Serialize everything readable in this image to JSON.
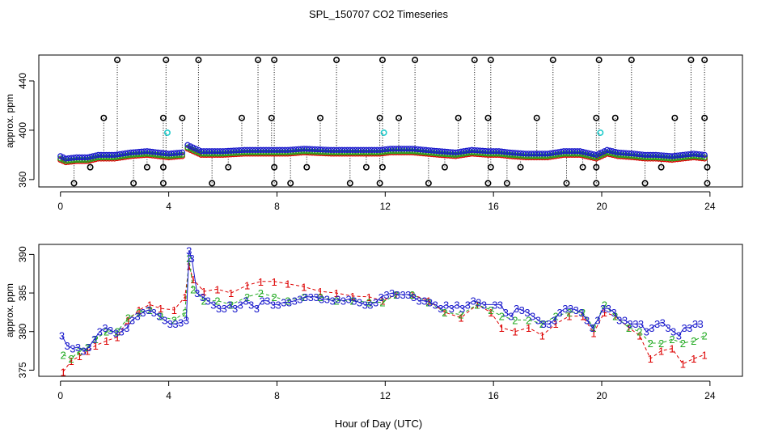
{
  "figure": {
    "title": "SPL_150707  CO2 Timeseries",
    "xlabel": "Hour of Day (UTC)"
  },
  "colors": {
    "series_1": "#dd0000",
    "series_2": "#22aa22",
    "series_3": "#1a1acc",
    "flag": "#000000",
    "cyan": "#22cccc"
  },
  "chart_data": [
    {
      "type": "scatter",
      "name": "top-panel",
      "ylabel": "approx. ppm",
      "xlim": [
        -0.8,
        25.2
      ],
      "ylim": [
        354,
        461
      ],
      "xticks": [
        0,
        4,
        8,
        12,
        16,
        20,
        24
      ],
      "yticks": [
        360,
        400,
        440
      ],
      "series": [
        {
          "name": "1",
          "marker": "o",
          "color": "#dd0000",
          "offset": -3
        },
        {
          "name": "2",
          "marker": "o",
          "color": "#22aa22",
          "offset": -2
        },
        {
          "name": "3",
          "marker": "o",
          "color": "#1a1acc",
          "offset": 0
        }
      ],
      "baseline_profile": [
        [
          0.0,
          379
        ],
        [
          0.2,
          377
        ],
        [
          0.6,
          378
        ],
        [
          1.0,
          378
        ],
        [
          1.4,
          380
        ],
        [
          2.0,
          380
        ],
        [
          2.6,
          382
        ],
        [
          3.2,
          383
        ],
        [
          3.6,
          382
        ],
        [
          4.0,
          381
        ],
        [
          4.5,
          382
        ],
        [
          4.7,
          388
        ],
        [
          4.9,
          386
        ],
        [
          5.2,
          383
        ],
        [
          6.0,
          383
        ],
        [
          6.8,
          384
        ],
        [
          7.4,
          384
        ],
        [
          7.9,
          384
        ],
        [
          8.4,
          384
        ],
        [
          9.0,
          385
        ],
        [
          10.0,
          384
        ],
        [
          11.0,
          384
        ],
        [
          11.8,
          384
        ],
        [
          12.2,
          385
        ],
        [
          13.0,
          385
        ],
        [
          14.0,
          383
        ],
        [
          14.6,
          382
        ],
        [
          15.2,
          384
        ],
        [
          15.8,
          383
        ],
        [
          16.2,
          383
        ],
        [
          16.6,
          382
        ],
        [
          17.2,
          381
        ],
        [
          18.0,
          381
        ],
        [
          18.6,
          383
        ],
        [
          19.2,
          383
        ],
        [
          19.8,
          380
        ],
        [
          20.2,
          384
        ],
        [
          20.6,
          382
        ],
        [
          21.2,
          381
        ],
        [
          21.6,
          380
        ],
        [
          22.0,
          380
        ],
        [
          22.6,
          379
        ],
        [
          23.0,
          380
        ],
        [
          23.4,
          381
        ],
        [
          23.8,
          380
        ]
      ],
      "flag_points": [
        {
          "x": 0.5,
          "y": 357
        },
        {
          "x": 1.1,
          "y": 370
        },
        {
          "x": 1.6,
          "y": 410
        },
        {
          "x": 2.1,
          "y": 457
        },
        {
          "x": 2.7,
          "y": 357
        },
        {
          "x": 3.2,
          "y": 370
        },
        {
          "x": 3.8,
          "y": 410
        },
        {
          "x": 3.9,
          "y": 457
        },
        {
          "x": 3.8,
          "y": 370
        },
        {
          "x": 3.8,
          "y": 357
        },
        {
          "x": 4.5,
          "y": 410
        },
        {
          "x": 5.1,
          "y": 457
        },
        {
          "x": 5.6,
          "y": 357
        },
        {
          "x": 6.2,
          "y": 370
        },
        {
          "x": 6.7,
          "y": 410
        },
        {
          "x": 7.3,
          "y": 457
        },
        {
          "x": 7.8,
          "y": 410
        },
        {
          "x": 7.9,
          "y": 457
        },
        {
          "x": 7.9,
          "y": 370
        },
        {
          "x": 7.9,
          "y": 357
        },
        {
          "x": 8.5,
          "y": 357
        },
        {
          "x": 9.1,
          "y": 370
        },
        {
          "x": 9.6,
          "y": 410
        },
        {
          "x": 10.2,
          "y": 457
        },
        {
          "x": 10.7,
          "y": 357
        },
        {
          "x": 11.3,
          "y": 370
        },
        {
          "x": 11.8,
          "y": 410
        },
        {
          "x": 11.9,
          "y": 457
        },
        {
          "x": 11.9,
          "y": 370
        },
        {
          "x": 11.8,
          "y": 357
        },
        {
          "x": 12.5,
          "y": 410
        },
        {
          "x": 13.1,
          "y": 457
        },
        {
          "x": 13.6,
          "y": 357
        },
        {
          "x": 14.2,
          "y": 370
        },
        {
          "x": 14.7,
          "y": 410
        },
        {
          "x": 15.3,
          "y": 457
        },
        {
          "x": 15.8,
          "y": 410
        },
        {
          "x": 15.9,
          "y": 457
        },
        {
          "x": 15.9,
          "y": 370
        },
        {
          "x": 15.8,
          "y": 357
        },
        {
          "x": 16.5,
          "y": 357
        },
        {
          "x": 17.0,
          "y": 370
        },
        {
          "x": 17.6,
          "y": 410
        },
        {
          "x": 18.2,
          "y": 457
        },
        {
          "x": 18.7,
          "y": 357
        },
        {
          "x": 19.3,
          "y": 370
        },
        {
          "x": 19.8,
          "y": 410
        },
        {
          "x": 19.9,
          "y": 457
        },
        {
          "x": 19.8,
          "y": 370
        },
        {
          "x": 19.8,
          "y": 357
        },
        {
          "x": 20.5,
          "y": 410
        },
        {
          "x": 21.1,
          "y": 457
        },
        {
          "x": 21.6,
          "y": 357
        },
        {
          "x": 22.2,
          "y": 370
        },
        {
          "x": 22.7,
          "y": 410
        },
        {
          "x": 23.3,
          "y": 457
        },
        {
          "x": 23.8,
          "y": 457
        },
        {
          "x": 23.8,
          "y": 410
        },
        {
          "x": 23.9,
          "y": 370
        },
        {
          "x": 23.9,
          "y": 357
        }
      ],
      "cyan_points": [
        {
          "x": 3.95,
          "y": 398
        },
        {
          "x": 11.95,
          "y": 398
        },
        {
          "x": 19.95,
          "y": 398
        }
      ]
    },
    {
      "type": "scatter",
      "name": "bottom-panel",
      "ylabel": "approx. ppm",
      "xlim": [
        -0.8,
        25.2
      ],
      "ylim": [
        374.2,
        391.3
      ],
      "xticks": [
        0,
        4,
        8,
        12,
        16,
        20,
        24
      ],
      "yticks": [
        375,
        380,
        385,
        390
      ],
      "series": [
        {
          "name": "1",
          "marker": "1",
          "color": "#dd0000",
          "x": [
            0.1,
            0.4,
            0.7,
            1.0,
            1.3,
            1.7,
            2.1,
            2.5,
            2.9,
            3.3,
            3.7,
            4.2,
            4.6,
            4.75,
            4.9,
            5.3,
            5.8,
            6.3,
            6.9,
            7.4,
            7.9,
            8.4,
            9.0,
            9.6,
            10.2,
            10.8,
            11.4,
            11.9,
            12.4,
            13.0,
            13.6,
            14.2,
            14.8,
            15.4,
            15.9,
            16.3,
            16.8,
            17.3,
            17.8,
            18.3,
            18.8,
            19.3,
            19.7,
            20.1,
            20.5,
            21.0,
            21.4,
            21.8,
            22.2,
            22.6,
            23.0,
            23.4,
            23.8
          ],
          "y": [
            374.8,
            376.2,
            376.8,
            377.5,
            378.2,
            378.8,
            379.3,
            381.5,
            382.8,
            383.5,
            383.0,
            382.8,
            384.5,
            388.5,
            386.8,
            385.2,
            385.5,
            385.0,
            386.0,
            386.5,
            386.5,
            386.2,
            385.8,
            385.2,
            385.0,
            384.6,
            384.5,
            384.0,
            384.8,
            384.8,
            384.0,
            382.5,
            381.8,
            383.5,
            382.5,
            380.5,
            380.0,
            380.5,
            379.5,
            381.0,
            382.0,
            382.0,
            379.8,
            382.5,
            382.0,
            380.5,
            379.5,
            376.5,
            377.5,
            377.8,
            375.8,
            376.5,
            377.0
          ]
        },
        {
          "name": "2",
          "marker": "2",
          "color": "#22aa22",
          "x": [
            0.1,
            0.4,
            0.7,
            1.0,
            1.3,
            1.7,
            2.1,
            2.5,
            2.9,
            3.3,
            3.7,
            4.2,
            4.6,
            4.75,
            4.9,
            5.3,
            5.8,
            6.3,
            6.9,
            7.4,
            7.9,
            8.4,
            9.0,
            9.6,
            10.2,
            10.8,
            11.4,
            11.9,
            12.4,
            13.0,
            13.6,
            14.2,
            14.8,
            15.4,
            15.9,
            16.3,
            16.8,
            17.3,
            17.8,
            18.3,
            18.8,
            19.3,
            19.7,
            20.1,
            20.5,
            21.0,
            21.4,
            21.8,
            22.2,
            22.6,
            23.0,
            23.4,
            23.8
          ],
          "y": [
            377.0,
            376.5,
            377.5,
            378.0,
            379.0,
            380.0,
            380.0,
            381.8,
            382.5,
            382.8,
            382.0,
            381.5,
            382.5,
            389.5,
            385.5,
            384.0,
            384.0,
            383.5,
            384.5,
            385.0,
            384.5,
            384.0,
            384.5,
            384.5,
            384.0,
            384.0,
            383.8,
            383.8,
            384.8,
            384.8,
            383.8,
            382.5,
            382.2,
            383.5,
            382.8,
            382.0,
            381.5,
            381.5,
            381.0,
            382.0,
            382.5,
            382.5,
            380.5,
            383.5,
            382.0,
            380.5,
            380.0,
            378.5,
            378.5,
            379.0,
            378.5,
            378.8,
            379.5
          ]
        },
        {
          "name": "3",
          "marker": "3",
          "color": "#1a1acc",
          "x": [
            0.05,
            0.25,
            0.45,
            0.65,
            0.85,
            1.05,
            1.25,
            1.45,
            1.65,
            1.85,
            2.05,
            2.25,
            2.45,
            2.65,
            2.85,
            3.05,
            3.25,
            3.45,
            3.65,
            3.85,
            4.05,
            4.25,
            4.45,
            4.65,
            4.75,
            4.85,
            5.05,
            5.25,
            5.45,
            5.65,
            5.85,
            6.05,
            6.25,
            6.45,
            6.65,
            6.85,
            7.05,
            7.25,
            7.45,
            7.65,
            7.85,
            8.05,
            8.25,
            8.45,
            8.65,
            8.85,
            9.05,
            9.25,
            9.45,
            9.65,
            9.85,
            10.05,
            10.25,
            10.45,
            10.65,
            10.85,
            11.05,
            11.25,
            11.45,
            11.65,
            11.85,
            12.05,
            12.25,
            12.45,
            12.65,
            12.85,
            13.05,
            13.25,
            13.45,
            13.65,
            13.85,
            14.05,
            14.25,
            14.45,
            14.65,
            14.85,
            15.05,
            15.25,
            15.45,
            15.65,
            16.05,
            16.25,
            16.45,
            16.65,
            16.85,
            17.05,
            17.25,
            17.45,
            17.65,
            17.85,
            18.05,
            18.25,
            18.45,
            18.65,
            18.85,
            19.05,
            19.25,
            19.45,
            19.65,
            19.85,
            20.05,
            20.25,
            20.45,
            20.65,
            20.85,
            21.05,
            21.25,
            21.45,
            21.65,
            21.85,
            22.05,
            22.25,
            22.45,
            22.65,
            22.85,
            23.05,
            23.25,
            23.45,
            23.65
          ],
          "y": [
            379.5,
            378.2,
            377.8,
            378.0,
            377.5,
            378.0,
            379.0,
            380.0,
            380.5,
            380.2,
            379.8,
            380.0,
            380.5,
            381.5,
            382.0,
            382.5,
            382.8,
            382.5,
            382.0,
            381.5,
            381.0,
            381.0,
            381.2,
            381.5,
            390.5,
            389.5,
            385.0,
            384.5,
            384.0,
            383.5,
            383.0,
            383.0,
            383.5,
            383.0,
            383.5,
            384.0,
            383.5,
            383.0,
            384.0,
            384.0,
            383.5,
            383.5,
            383.8,
            383.8,
            384.0,
            384.2,
            384.5,
            384.5,
            384.5,
            384.2,
            384.2,
            384.0,
            384.2,
            384.0,
            384.2,
            384.0,
            383.8,
            383.5,
            383.5,
            383.8,
            384.5,
            384.8,
            385.0,
            384.8,
            384.8,
            384.8,
            384.5,
            384.0,
            384.0,
            383.8,
            383.5,
            383.0,
            383.5,
            383.0,
            383.5,
            383.0,
            383.5,
            384.0,
            383.8,
            383.5,
            383.5,
            383.5,
            382.5,
            382.0,
            383.0,
            382.8,
            382.5,
            382.0,
            381.5,
            381.0,
            381.0,
            381.5,
            382.5,
            383.0,
            383.0,
            382.8,
            382.5,
            381.5,
            380.5,
            381.5,
            383.0,
            383.0,
            382.5,
            381.5,
            381.5,
            381.0,
            381.0,
            381.0,
            380.0,
            380.5,
            381.0,
            381.2,
            380.5,
            380.0,
            379.5,
            380.5,
            380.5,
            381.0,
            381.0
          ]
        }
      ]
    }
  ]
}
